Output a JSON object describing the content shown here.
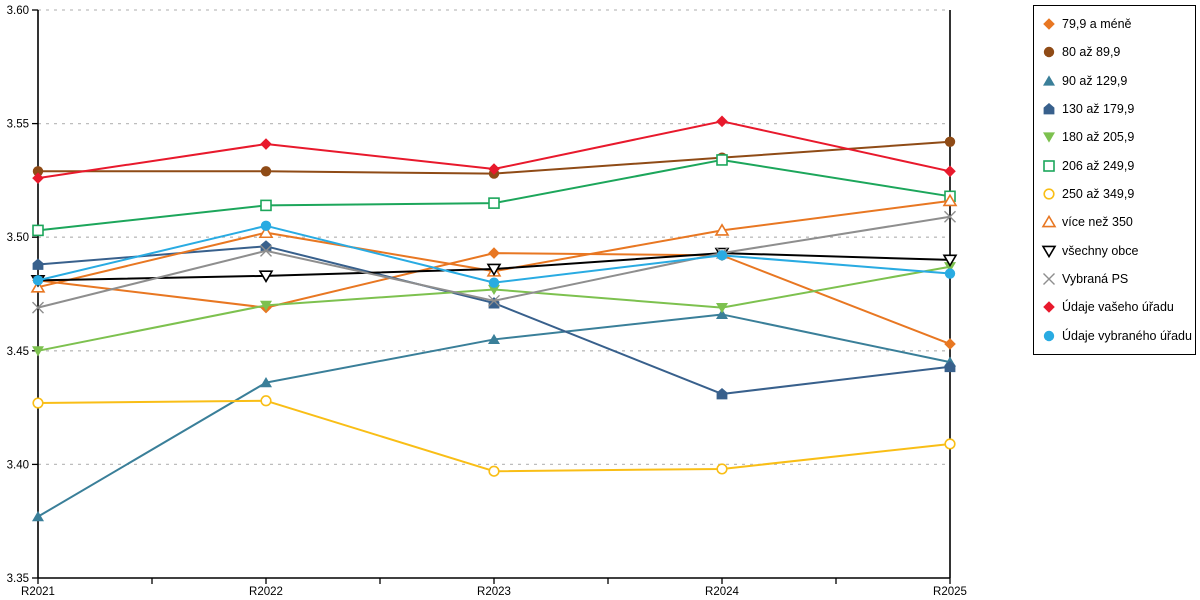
{
  "chart_data": {
    "type": "line",
    "title": "",
    "xlabel": "",
    "ylabel": "",
    "categories": [
      "R2021",
      "R2022",
      "R2023",
      "R2024",
      "R2025"
    ],
    "ylim": [
      3.35,
      3.6
    ],
    "yticks": [
      "3.35",
      "3.40",
      "3.45",
      "3.50",
      "3.55",
      "3.60"
    ],
    "grid": "horizontal-dashed",
    "legend_position": "right",
    "grid_color": "#bdbdbd",
    "axis_color": "#000000",
    "series": [
      {
        "name": "79,9 a méně",
        "marker": "diamond",
        "fill": "solid",
        "color": "#E87722",
        "values": [
          3.481,
          3.469,
          3.493,
          3.492,
          3.453
        ]
      },
      {
        "name": "80 až 89,9",
        "marker": "circle",
        "fill": "solid",
        "color": "#8F4B16",
        "values": [
          3.529,
          3.529,
          3.528,
          3.535,
          3.542
        ]
      },
      {
        "name": "90 až 129,9",
        "marker": "triangle-up",
        "fill": "solid",
        "color": "#3A7F99",
        "values": [
          3.377,
          3.436,
          3.455,
          3.466,
          3.445
        ]
      },
      {
        "name": "130 až 179,9",
        "marker": "pentagon",
        "fill": "solid",
        "color": "#38608C",
        "values": [
          3.488,
          3.496,
          3.471,
          3.431,
          3.443
        ]
      },
      {
        "name": "180 až 205,9",
        "marker": "triangle-down",
        "fill": "solid",
        "color": "#7DC14F",
        "values": [
          3.45,
          3.47,
          3.477,
          3.469,
          3.487
        ]
      },
      {
        "name": "206 až 249,9",
        "marker": "square",
        "fill": "open",
        "color": "#1CA65B",
        "values": [
          3.503,
          3.514,
          3.515,
          3.534,
          3.518
        ]
      },
      {
        "name": "250 až 349,9",
        "marker": "circle",
        "fill": "open",
        "color": "#F9BE16",
        "values": [
          3.427,
          3.428,
          3.397,
          3.398,
          3.409
        ]
      },
      {
        "name": "více než 350",
        "marker": "triangle-up",
        "fill": "open",
        "color": "#E87722",
        "values": [
          3.478,
          3.502,
          3.485,
          3.503,
          3.516
        ]
      },
      {
        "name": "všechny obce",
        "marker": "triangle-down",
        "fill": "open",
        "color": "#000000",
        "values": [
          3.481,
          3.483,
          3.486,
          3.493,
          3.49
        ]
      },
      {
        "name": "Vybraná PS",
        "marker": "x",
        "fill": "line",
        "color": "#8E8E8E",
        "values": [
          3.469,
          3.494,
          3.472,
          3.493,
          3.509
        ]
      },
      {
        "name": "Údaje vašeho úřadu",
        "marker": "diamond",
        "fill": "solid",
        "color": "#E8192C",
        "values": [
          3.526,
          3.541,
          3.53,
          3.551,
          3.529
        ]
      },
      {
        "name": "Údaje vybraného úřadu",
        "marker": "circle",
        "fill": "solid",
        "color": "#29ABE2",
        "values": [
          3.481,
          3.505,
          3.48,
          3.492,
          3.484
        ]
      }
    ]
  }
}
